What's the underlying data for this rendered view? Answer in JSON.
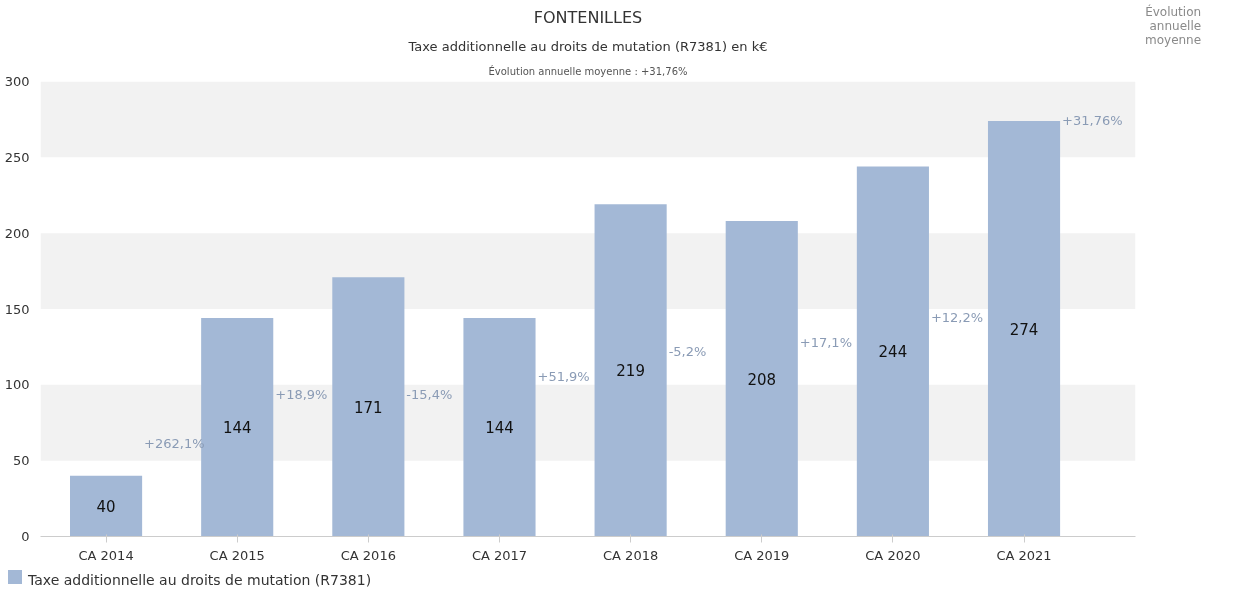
{
  "chart_data": {
    "type": "bar",
    "title": "FONTENILLES",
    "subtitle": "Taxe additionnelle au droits de mutation (R7381) en k€",
    "annotations": [
      "Évolution annuelle moyenne : +31,76%",
      "Évolution annuelle moyenne",
      "+262,1%",
      "+18,9%",
      "-15,4%",
      "+51,9%",
      "-5,2%",
      "+17,1%",
      "+12,2%",
      "+31,76%"
    ],
    "categories": [
      "CA 2014",
      "CA 2015",
      "CA 2016",
      "CA 2017",
      "CA 2018",
      "CA 2019",
      "CA 2020",
      "CA 2021"
    ],
    "series": [
      {
        "name": "Taxe additionnelle au droits de mutation (R7381)",
        "color": "#a3b8d6",
        "values": [
          40,
          144,
          171,
          144,
          219,
          208,
          244,
          274
        ]
      }
    ],
    "ylim": [
      0,
      300
    ],
    "yticks": [
      0,
      50,
      100,
      150,
      200,
      250,
      300
    ],
    "data_labels": true,
    "legend": "bottom left"
  }
}
